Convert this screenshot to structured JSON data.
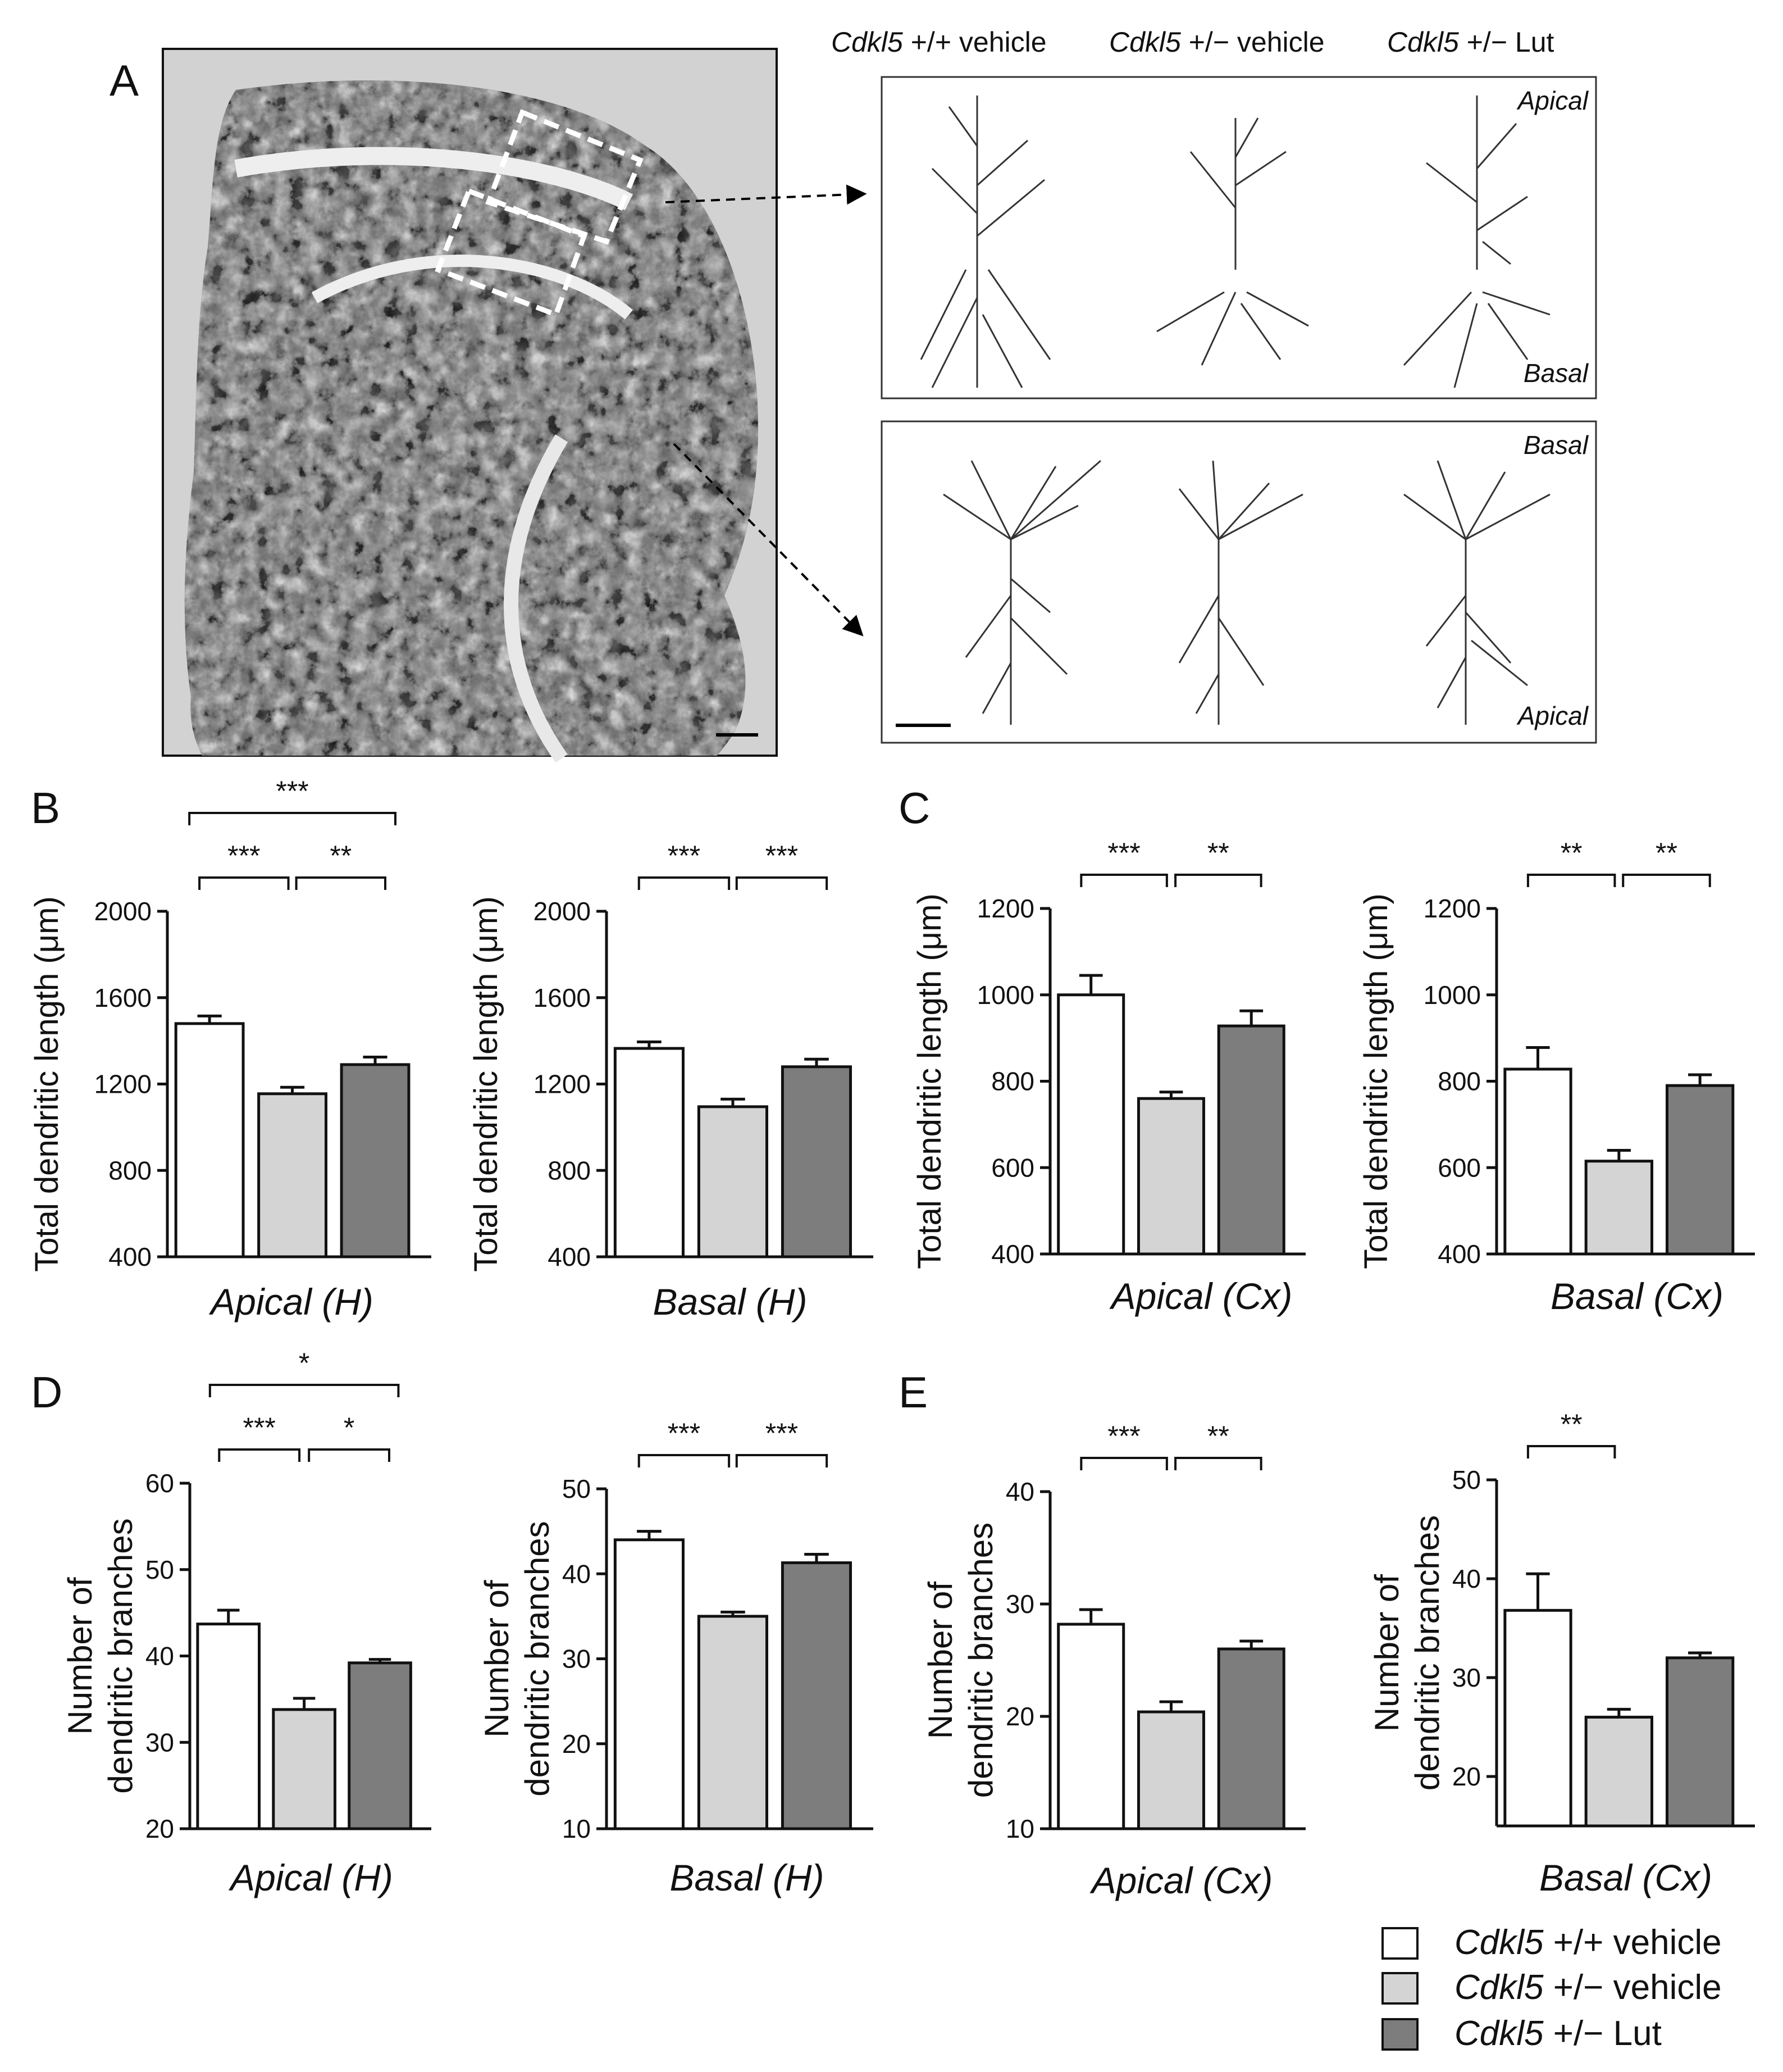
{
  "panel_labels": [
    "A",
    "B",
    "C",
    "D",
    "E"
  ],
  "groups": [
    "Cdkl5 +/+ vehicle",
    "Cdkl5 +/− vehicle",
    "Cdkl5 +/− Lut"
  ],
  "group_parts": [
    {
      "gene": "Cdkl5",
      "rest": " +/+ vehicle"
    },
    {
      "gene": "Cdkl5",
      "rest": " +/− vehicle"
    },
    {
      "gene": "Cdkl5",
      "rest": " +/− Lut"
    }
  ],
  "bar_colors": [
    "#ffffff",
    "#d4d4d4",
    "#7d7d7d"
  ],
  "panelA": {
    "box_top_labels": [
      "Apical",
      "Basal"
    ],
    "box_bottom_labels": [
      "Basal",
      "Apical"
    ]
  },
  "chart_data": [
    {
      "panel": "B",
      "type": "bar",
      "ylabel": "Total dendritic length (μm)",
      "xlabel": "Apical (H)",
      "ylim": [
        400,
        2000
      ],
      "yticks": [
        400,
        800,
        1200,
        1600,
        2000
      ],
      "values": [
        1480,
        1155,
        1290
      ],
      "errors": [
        35,
        30,
        35
      ],
      "sig": [
        {
          "from": 0,
          "to": 1,
          "label": "***",
          "level": 0
        },
        {
          "from": 1,
          "to": 2,
          "label": "**",
          "level": 0
        },
        {
          "from": 0,
          "to": 2,
          "label": "***",
          "level": 1
        }
      ]
    },
    {
      "panel": "B2",
      "type": "bar",
      "ylabel": "Total dendritic length (μm)",
      "xlabel": "Basal (H)",
      "ylim": [
        400,
        2000
      ],
      "yticks": [
        400,
        800,
        1200,
        1600,
        2000
      ],
      "values": [
        1365,
        1095,
        1280
      ],
      "errors": [
        30,
        35,
        35
      ],
      "sig": [
        {
          "from": 0,
          "to": 1,
          "label": "***",
          "level": 0
        },
        {
          "from": 1,
          "to": 2,
          "label": "***",
          "level": 0
        }
      ]
    },
    {
      "panel": "C",
      "type": "bar",
      "ylabel": "Total dendritic length (μm)",
      "xlabel": "Apical (Cx)",
      "ylim": [
        400,
        1200
      ],
      "yticks": [
        400,
        600,
        800,
        1000,
        1200
      ],
      "values": [
        1000,
        760,
        928
      ],
      "errors": [
        45,
        15,
        35
      ],
      "sig": [
        {
          "from": 0,
          "to": 1,
          "label": "***",
          "level": 0
        },
        {
          "from": 1,
          "to": 2,
          "label": "**",
          "level": 0
        }
      ]
    },
    {
      "panel": "C2",
      "type": "bar",
      "ylabel": "Total dendritic length (μm)",
      "xlabel": "Basal (Cx)",
      "ylim": [
        400,
        1200
      ],
      "yticks": [
        400,
        600,
        800,
        1000,
        1200
      ],
      "values": [
        828,
        615,
        790
      ],
      "errors": [
        50,
        25,
        25
      ],
      "sig": [
        {
          "from": 0,
          "to": 1,
          "label": "**",
          "level": 0
        },
        {
          "from": 1,
          "to": 2,
          "label": "**",
          "level": 0
        }
      ]
    },
    {
      "panel": "D",
      "type": "bar",
      "ylabel": [
        "Number of",
        "dendritic branches"
      ],
      "xlabel": "Apical (H)",
      "ylim": [
        20,
        60
      ],
      "yticks": [
        20,
        30,
        40,
        50,
        60
      ],
      "values": [
        43.7,
        33.8,
        39.2
      ],
      "errors": [
        1.6,
        1.3,
        0.4
      ],
      "sig": [
        {
          "from": 0,
          "to": 1,
          "label": "***",
          "level": 0
        },
        {
          "from": 1,
          "to": 2,
          "label": "*",
          "level": 0
        },
        {
          "from": 0,
          "to": 2,
          "label": "*",
          "level": 1
        }
      ]
    },
    {
      "panel": "D2",
      "type": "bar",
      "ylabel": [
        "Number of",
        "dendritic branches"
      ],
      "xlabel": "Basal (H)",
      "ylim": [
        10,
        50
      ],
      "yticks": [
        10,
        20,
        30,
        40,
        50
      ],
      "values": [
        44.0,
        35.0,
        41.3
      ],
      "errors": [
        1.0,
        0.5,
        1.0
      ],
      "sig": [
        {
          "from": 0,
          "to": 1,
          "label": "***",
          "level": 0
        },
        {
          "from": 1,
          "to": 2,
          "label": "***",
          "level": 0
        }
      ]
    },
    {
      "panel": "E",
      "type": "bar",
      "ylabel": [
        "Number of",
        "dendritic branches"
      ],
      "xlabel": "Apical (Cx)",
      "ylim": [
        10,
        40
      ],
      "yticks": [
        10,
        20,
        30,
        40
      ],
      "values": [
        28.2,
        20.4,
        26.0
      ],
      "errors": [
        1.3,
        0.9,
        0.7
      ],
      "sig": [
        {
          "from": 0,
          "to": 1,
          "label": "***",
          "level": 0
        },
        {
          "from": 1,
          "to": 2,
          "label": "**",
          "level": 0
        }
      ]
    },
    {
      "panel": "E2",
      "type": "bar",
      "ylabel": [
        "Number of",
        "dendritic branches"
      ],
      "xlabel": "Basal (Cx)",
      "ylim": [
        15,
        50
      ],
      "yticks": [
        20,
        30,
        40,
        50
      ],
      "values": [
        36.8,
        26.0,
        32.0
      ],
      "errors": [
        3.7,
        0.8,
        0.5
      ],
      "sig": [
        {
          "from": 0,
          "to": 1,
          "label": "**",
          "level": 0
        }
      ]
    }
  ]
}
